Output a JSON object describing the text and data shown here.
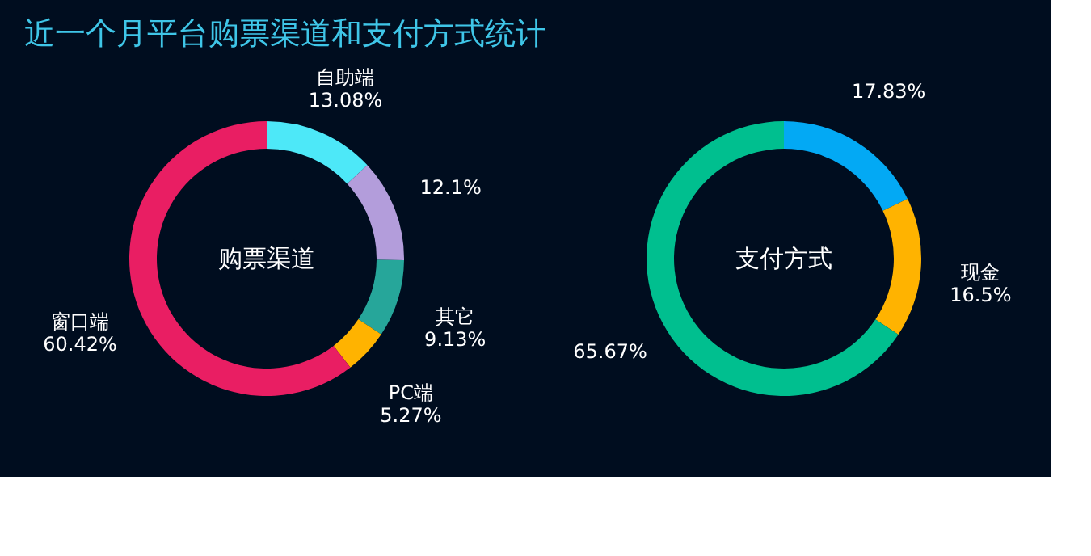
{
  "chart_data": [
    {
      "type": "donut",
      "title": "近一个月平台购票渠道和支付方式统计",
      "subtitle": "购票渠道",
      "categories": [
        "自助端",
        null,
        "其它",
        "PC端",
        "窗口端"
      ],
      "values": [
        13.08,
        12.1,
        9.13,
        5.27,
        60.42
      ],
      "colors": [
        "#4de8f8",
        "#b39ddb",
        "#26a69a",
        "#ffb300",
        "#e91e63"
      ],
      "value_labels": [
        "13.08%",
        "12.1%",
        "9.13%",
        "5.27%",
        "60.42%"
      ]
    },
    {
      "type": "donut",
      "subtitle": "支付方式",
      "categories": [
        null,
        "现金",
        null
      ],
      "values": [
        17.83,
        16.5,
        65.67
      ],
      "colors": [
        "#03a9f4",
        "#ffb300",
        "#00bf8f"
      ],
      "value_labels": [
        "17.83%",
        "16.5%",
        "65.67%"
      ]
    }
  ]
}
